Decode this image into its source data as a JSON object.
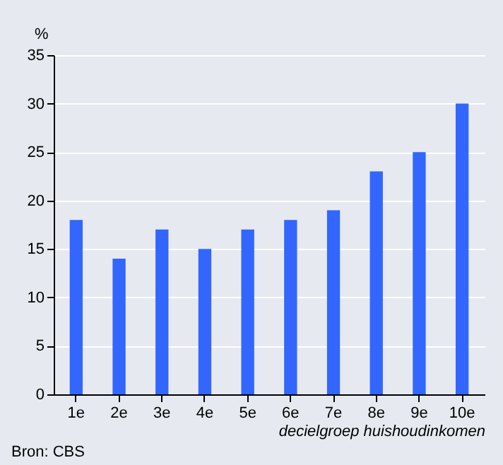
{
  "chart_data": {
    "type": "bar",
    "ylabel": "%",
    "xlabel": "decielgroep huishoudinkomen",
    "categories": [
      "1e",
      "2e",
      "3e",
      "4e",
      "5e",
      "6e",
      "7e",
      "8e",
      "9e",
      "10e"
    ],
    "values": [
      18,
      14,
      17,
      15,
      17,
      18,
      19,
      23,
      25,
      30
    ],
    "color": "#3366ff",
    "ylim": [
      0,
      35
    ],
    "yticks": [
      0,
      5,
      10,
      15,
      20,
      25,
      30,
      35
    ],
    "grid": "y",
    "annotations": [
      "Bron: CBS"
    ]
  }
}
